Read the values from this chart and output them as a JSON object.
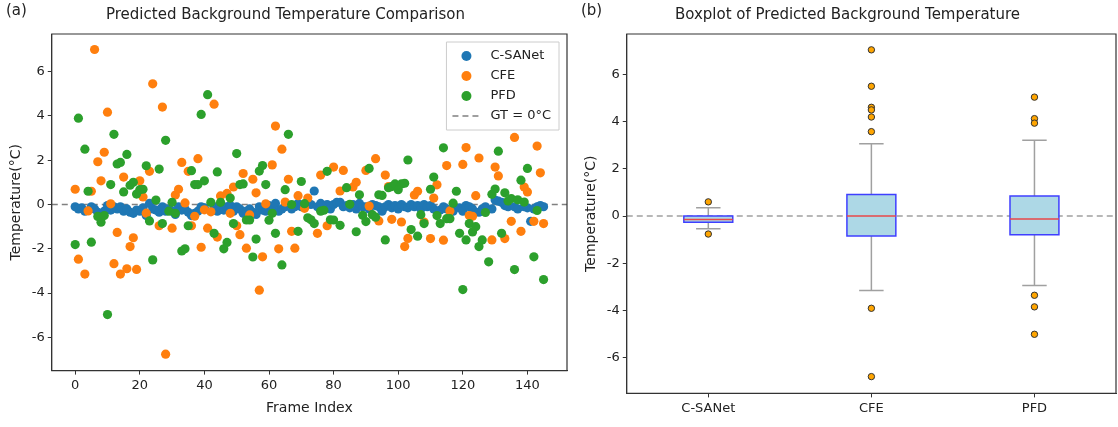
{
  "chart_data": [
    {
      "type": "scatter",
      "title": "Predicted Background Temperature Comparison",
      "xlabel": "Frame Index",
      "ylabel": "Temperature(°C)",
      "annotations": [
        "(a)"
      ],
      "xlim": [
        -7.25,
        152.25
      ],
      "xticks": [
        0,
        20,
        40,
        60,
        80,
        100,
        120,
        140
      ],
      "ylim": [
        -7.5,
        7.7
      ],
      "yticks": [
        -6,
        -4,
        -2,
        0,
        2,
        4,
        6
      ],
      "legend": "top right",
      "marker": "circle",
      "ref_lines": [
        {
          "axis": "y",
          "value": 0,
          "label": "GT = 0°C",
          "color": "#808080",
          "line_style": "dashed"
        }
      ],
      "series": [
        {
          "name": "C-SANet",
          "color": "#1f77b4",
          "x": [
            0,
            1,
            2,
            3,
            4,
            5,
            6,
            7,
            8,
            9,
            10,
            11,
            12,
            13,
            14,
            15,
            16,
            17,
            18,
            19,
            20,
            21,
            22,
            23,
            24,
            25,
            26,
            27,
            28,
            29,
            30,
            31,
            32,
            33,
            34,
            35,
            36,
            37,
            38,
            39,
            40,
            41,
            42,
            43,
            44,
            45,
            46,
            47,
            48,
            49,
            50,
            51,
            52,
            53,
            54,
            55,
            56,
            57,
            58,
            59,
            60,
            61,
            62,
            63,
            64,
            65,
            66,
            67,
            68,
            69,
            70,
            71,
            72,
            73,
            74,
            75,
            76,
            77,
            78,
            79,
            80,
            81,
            82,
            83,
            84,
            85,
            86,
            87,
            88,
            89,
            90,
            91,
            92,
            93,
            94,
            95,
            96,
            97,
            98,
            99,
            100,
            101,
            102,
            103,
            104,
            105,
            106,
            107,
            108,
            109,
            110,
            111,
            112,
            113,
            114,
            115,
            116,
            117,
            118,
            119,
            120,
            121,
            122,
            123,
            124,
            125,
            126,
            127,
            128,
            129,
            130,
            131,
            132,
            133,
            134,
            135,
            136,
            137,
            138,
            139,
            140,
            141,
            142,
            143,
            144,
            145
          ],
          "values": [
            -0.1,
            -0.2,
            -0.15,
            -0.3,
            null,
            -0.1,
            -0.2,
            -0.35,
            null,
            -0.3,
            -0.05,
            -0.25,
            -0.1,
            -0.2,
            -0.1,
            -0.3,
            -0.2,
            -0.35,
            -0.4,
            -0.25,
            -0.3,
            -0.15,
            -0.5,
            0.05,
            -0.2,
            -0.25,
            -0.35,
            -0.1,
            -0.3,
            -0.2,
            -0.3,
            -0.45,
            -0.1,
            -0.25,
            -0.2,
            -0.35,
            -0.5,
            -0.4,
            -0.3,
            -0.1,
            -0.15,
            null,
            null,
            -0.1,
            -0.3,
            -0.2,
            -0.25,
            -0.1,
            -0.05,
            -0.3,
            -0.1,
            -0.2,
            -0.4,
            -0.3,
            -0.2,
            -0.35,
            -0.45,
            -0.1,
            -0.25,
            -0.3,
            -0.05,
            -0.2,
            0.05,
            -0.3,
            -0.2,
            -0.1,
            null,
            -0.2,
            -0.1,
            0.05,
            -0.1,
            null,
            null,
            0.0,
            0.61,
            -0.1,
            0.05,
            null,
            0.0,
            -0.2,
            0.0,
            0.1,
            0.1,
            -0.1,
            -0.05,
            -0.15,
            0.0,
            -0.2,
            0.05,
            -0.1,
            -0.1,
            -0.2,
            0.0,
            -0.05,
            -0.1,
            -0.3,
            -0.1,
            0.0,
            -0.15,
            -0.05,
            -0.2,
            0.0,
            -0.1,
            -0.15,
            0.0,
            -0.1,
            -0.05,
            -0.2,
            0.0,
            -0.1,
            -0.05,
            -0.2,
            null,
            -0.25,
            -0.1,
            -0.2,
            null,
            -0.3,
            null,
            -0.15,
            -0.3,
            -0.05,
            -0.1,
            -0.2,
            null,
            -0.35,
            -0.2,
            -0.1,
            null,
            -0.2,
            0.2,
            0.15,
            0.1,
            -0.05,
            -0.1,
            null,
            -0.1,
            -0.2,
            null,
            -0.1,
            -0.15,
            -0.76,
            -0.2,
            -0.1,
            -0.05,
            -0.1
          ]
        },
        {
          "name": "CFE",
          "color": "#ff7f0e",
          "x": [
            0,
            1,
            3,
            4,
            5,
            6,
            7,
            8,
            9,
            10,
            11,
            12,
            13,
            14,
            15,
            16,
            17,
            18,
            19,
            20,
            21,
            22,
            23,
            24,
            26,
            27,
            28,
            30,
            31,
            32,
            33,
            34,
            35,
            36,
            37,
            38,
            39,
            40,
            41,
            42,
            43,
            44,
            45,
            47,
            48,
            49,
            50,
            51,
            52,
            53,
            54,
            55,
            56,
            57,
            58,
            59,
            61,
            62,
            63,
            64,
            65,
            66,
            67,
            68,
            69,
            71,
            72,
            75,
            76,
            78,
            80,
            82,
            83,
            86,
            87,
            90,
            91,
            93,
            94,
            96,
            97,
            98,
            101,
            102,
            103,
            105,
            106,
            108,
            110,
            111,
            112,
            114,
            115,
            116,
            120,
            121,
            122,
            123,
            124,
            125,
            129,
            130,
            131,
            133,
            135,
            136,
            138,
            139,
            140,
            142,
            143,
            144,
            145
          ],
          "values": [
            0.69,
            -2.47,
            -3.14,
            -0.29,
            0.6,
            7.0,
            1.93,
            1.07,
            2.36,
            4.17,
            0.03,
            -2.67,
            -1.26,
            -3.14,
            1.24,
            -2.9,
            -1.9,
            -1.5,
            -2.93,
            1.07,
            0.34,
            -0.39,
            1.5,
            5.45,
            -0.96,
            4.4,
            -6.76,
            -1.07,
            0.43,
            0.69,
            1.9,
            0.07,
            1.5,
            -0.96,
            -0.53,
            2.07,
            -1.93,
            -0.24,
            -1.07,
            -0.33,
            4.53,
            -1.47,
            0.39,
            0.5,
            -0.4,
            0.79,
            -0.96,
            -1.36,
            1.4,
            -1.97,
            -0.47,
            1.14,
            0.53,
            -3.87,
            -2.36,
            0.03,
            1.79,
            3.54,
            -2.0,
            2.5,
            0.11,
            1.14,
            -1.21,
            -1.97,
            0.4,
            -0.17,
            0.29,
            -1.3,
            1.33,
            -0.96,
            1.69,
            0.61,
            1.54,
            0.79,
            1.0,
            1.54,
            -0.07,
            2.07,
            -0.74,
            1.33,
            0.81,
            -0.67,
            -0.79,
            -1.9,
            -1.53,
            0.43,
            0.6,
            -0.79,
            -1.54,
            0.29,
            0.89,
            -1.61,
            1.76,
            -0.29,
            1.81,
            2.57,
            -0.5,
            -0.53,
            0.4,
            2.1,
            -1.6,
            1.69,
            1.29,
            -1.54,
            -0.76,
            3.03,
            -1.21,
            0.79,
            0.57,
            -0.76,
            2.64,
            1.43,
            -0.86
          ]
        },
        {
          "name": "PFD",
          "color": "#2ca02c",
          "x": [
            0,
            1,
            3,
            4,
            5,
            7,
            8,
            9,
            10,
            11,
            12,
            13,
            14,
            15,
            16,
            17,
            18,
            19,
            20,
            21,
            22,
            23,
            24,
            25,
            26,
            27,
            28,
            29,
            30,
            31,
            33,
            34,
            35,
            36,
            37,
            38,
            39,
            40,
            41,
            42,
            43,
            44,
            45,
            46,
            47,
            48,
            49,
            50,
            51,
            52,
            53,
            54,
            55,
            56,
            57,
            58,
            59,
            60,
            61,
            62,
            64,
            65,
            66,
            67,
            69,
            70,
            71,
            72,
            73,
            74,
            76,
            77,
            78,
            79,
            80,
            82,
            84,
            85,
            87,
            88,
            89,
            90,
            91,
            92,
            93,
            94,
            95,
            96,
            97,
            98,
            99,
            100,
            101,
            102,
            103,
            104,
            106,
            107,
            108,
            110,
            111,
            112,
            113,
            114,
            115,
            116,
            117,
            118,
            119,
            120,
            121,
            122,
            123,
            124,
            125,
            126,
            127,
            128,
            129,
            130,
            131,
            132,
            133,
            134,
            135,
            136,
            137,
            138,
            139,
            140,
            142,
            143,
            145
          ],
          "values": [
            -1.81,
            3.9,
            2.5,
            0.6,
            -1.7,
            -0.54,
            -0.8,
            -0.5,
            -4.97,
            0.9,
            3.17,
            1.83,
            1.9,
            0.57,
            2.26,
            0.87,
            1.0,
            0.47,
            0.67,
            0.69,
            1.75,
            -0.74,
            -2.5,
            0.2,
            1.6,
            -0.86,
            2.9,
            -0.3,
            0.1,
            -0.4,
            -2.1,
            -2.0,
            -0.96,
            1.53,
            0.9,
            0.9,
            4.07,
            1.07,
            4.96,
            0.1,
            -1.3,
            1.47,
            0.1,
            -2.0,
            -1.71,
            0.29,
            -0.86,
            2.3,
            0.9,
            0.93,
            -0.7,
            -0.7,
            -2.37,
            -1.56,
            1.51,
            1.76,
            0.9,
            -0.71,
            -0.4,
            -1.3,
            -2.73,
            0.67,
            3.17,
            0,
            -1.21,
            1.04,
            0.04,
            -0.6,
            -0.69,
            -0.86,
            -0.3,
            -0.26,
            1.5,
            -0.69,
            -0.7,
            -0.94,
            0.76,
            0.01,
            -1.23,
            0.44,
            -0.49,
            -0.77,
            1.63,
            -0.46,
            -0.57,
            0.44,
            0.41,
            -1.6,
            0.76,
            0.81,
            0.93,
            0.67,
            0.93,
            0.96,
            2.01,
            -1.13,
            -1.43,
            -0.46,
            -0.86,
            0.69,
            1.24,
            -0.5,
            -0.86,
            2.56,
            -0.64,
            -0.64,
            0.06,
            0.6,
            -1.3,
            -3.84,
            -1.6,
            -0.86,
            -1.24,
            -1.0,
            -1.9,
            -1.6,
            -0.36,
            -2.59,
            0.46,
            0.7,
            2.41,
            -1.3,
            0.53,
            0.16,
            0.27,
            -2.94,
            0.21,
            1.1,
            0.11,
            1.63,
            -2.36,
            -0.27,
            -3.39
          ]
        }
      ]
    },
    {
      "type": "box",
      "title": "Boxplot of Predicted Background Temperature",
      "ylabel": "Temperature(°C)",
      "annotations": [
        "(b)"
      ],
      "categories": [
        "C-SANet",
        "CFE",
        "PFD"
      ],
      "color": "#add8e6",
      "ylim": [
        -7.5,
        7.7
      ],
      "yticks": [
        -6,
        -4,
        -2,
        0,
        2,
        4,
        6
      ],
      "ref_lines": [
        {
          "axis": "y",
          "value": 0,
          "color": "#a0a0a0",
          "line_style": "dashed"
        }
      ],
      "boxes": [
        {
          "low": -0.54,
          "q1": -0.26,
          "median": -0.15,
          "q3": 0.0,
          "high": 0.35,
          "outliers": [
            0.6,
            -0.76
          ]
        },
        {
          "low": -3.15,
          "q1": -0.84,
          "median": 0.0,
          "q3": 0.91,
          "high": 3.06,
          "outliers": [
            7.03,
            5.49,
            4.6,
            4.49,
            4.19,
            3.57,
            -3.9,
            -6.79
          ]
        },
        {
          "low": -2.94,
          "q1": -0.79,
          "median": -0.12,
          "q3": 0.85,
          "high": 3.21,
          "outliers": [
            5.03,
            4.12,
            3.93,
            -3.35,
            -3.84,
            -5.0
          ]
        }
      ]
    }
  ]
}
